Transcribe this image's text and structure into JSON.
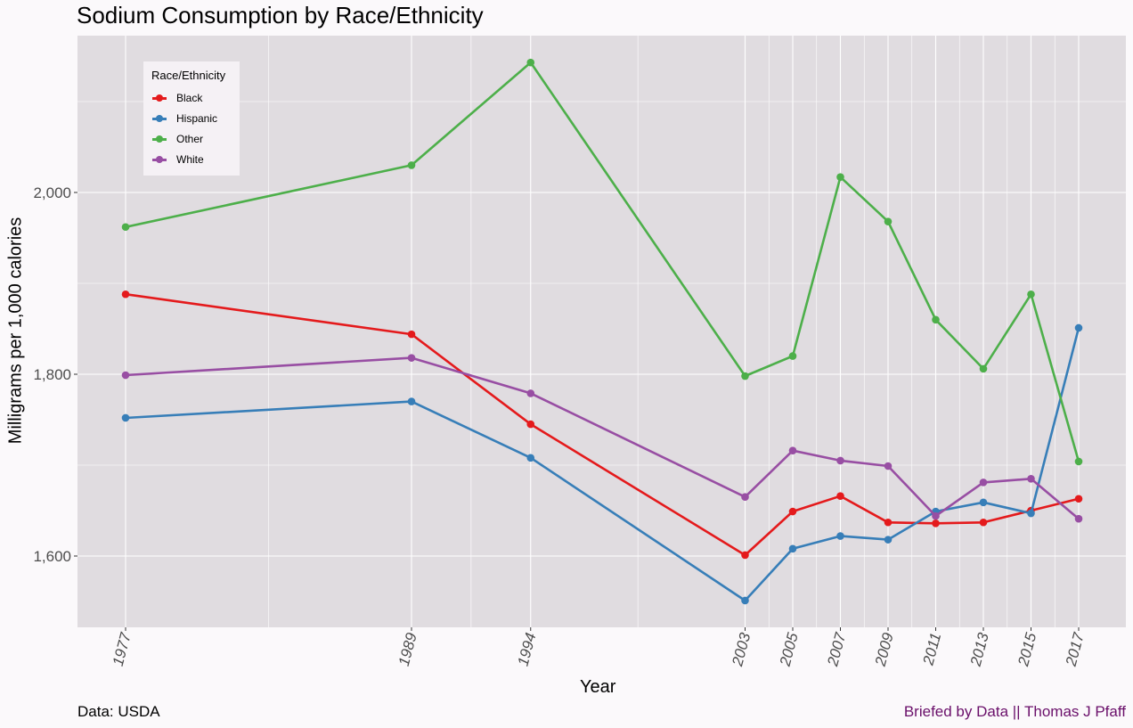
{
  "chart_data": {
    "type": "line",
    "title": "Sodium Consumption by Race/Ethnicity",
    "xlabel": "Year",
    "ylabel": "Milligrams per 1,000 calories",
    "x": [
      1977,
      1989,
      1994,
      2003,
      2005,
      2007,
      2009,
      2011,
      2013,
      2015,
      2017
    ],
    "x_tick_labels": [
      "1977",
      "1989",
      "1994",
      "2003",
      "2005",
      "2007",
      "2009",
      "2011",
      "2013",
      "2015",
      "2017"
    ],
    "y_ticks": [
      1600,
      1800,
      2000
    ],
    "y_tick_labels": [
      "1,600",
      "1,800",
      "2,000"
    ],
    "ylim": [
      1520,
      2170
    ],
    "xlim": [
      1975,
      2019
    ],
    "grid": true,
    "legend": {
      "title": "Race/Ethnicity",
      "placement": "top-left"
    },
    "series": [
      {
        "name": "Black",
        "color": "#E41A1C",
        "values": [
          1888,
          1844,
          1745,
          1601,
          1649,
          1666,
          1637,
          1636,
          1637,
          1650,
          1663
        ]
      },
      {
        "name": "Hispanic",
        "color": "#377EB8",
        "values": [
          1752,
          1770,
          1708,
          1551,
          1608,
          1622,
          1618,
          1649,
          1659,
          1647,
          1851
        ]
      },
      {
        "name": "Other",
        "color": "#4DAF4A",
        "values": [
          1962,
          2030,
          2143,
          1798,
          1820,
          2017,
          1968,
          1860,
          1806,
          1888,
          1704
        ]
      },
      {
        "name": "White",
        "color": "#984EA3",
        "values": [
          1799,
          1818,
          1779,
          1665,
          1716,
          1705,
          1699,
          1644,
          1681,
          1685,
          1641
        ]
      }
    ]
  },
  "caption": {
    "source": "Data: USDA",
    "credit": "Briefed by Data || Thomas J Pfaff"
  }
}
